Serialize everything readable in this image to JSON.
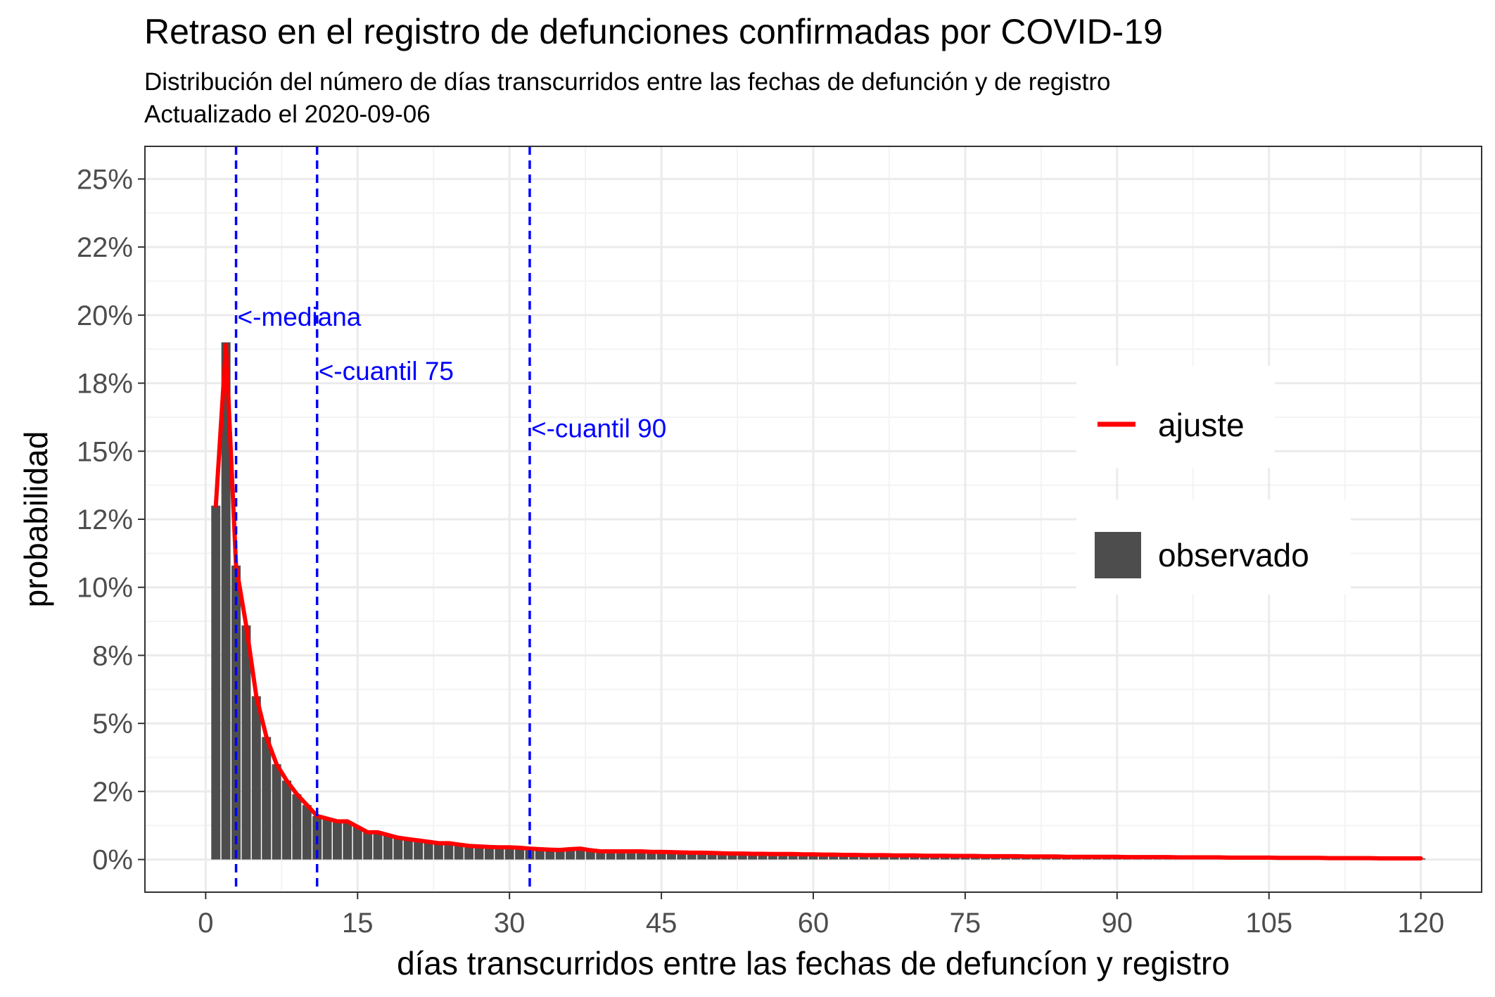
{
  "chart_data": {
    "type": "bar",
    "title": "Retraso en el registro de defunciones confirmadas por COVID-19",
    "subtitle_line1": "Distribución del número de días transcurridos entre las fechas de defunción y de registro",
    "subtitle_line2": "Actualizado el  2020-09-06",
    "xlabel": "días transcurridos entre las fechas de defuncíon y registro",
    "ylabel": "probabilidad",
    "xlim": [
      -6,
      126
    ],
    "ylim": [
      -0.012,
      0.262
    ],
    "x_ticks": [
      0,
      15,
      30,
      45,
      60,
      75,
      90,
      105,
      120
    ],
    "x_tick_labels": [
      "0",
      "15",
      "30",
      "45",
      "60",
      "75",
      "90",
      "105",
      "120"
    ],
    "y_ticks": [
      0,
      0.025,
      0.05,
      0.075,
      0.1,
      0.125,
      0.15,
      0.175,
      0.2,
      0.225,
      0.25
    ],
    "y_tick_labels": [
      "0%",
      "2%",
      "5%",
      "8%",
      "10%",
      "12%",
      "15%",
      "18%",
      "20%",
      "22%",
      "25%"
    ],
    "grid": true,
    "legend_position": "right",
    "colors": {
      "observado": "#4d4d4d",
      "ajuste": "#ff0000",
      "quantile_lines": "#0000ff",
      "grid_major": "#ebebeb",
      "grid_minor": "#f3f3f3",
      "panel_border": "#333333"
    },
    "legend": [
      {
        "key": "ajuste",
        "label": "ajuste",
        "kind": "line"
      },
      {
        "key": "observado",
        "label": "observado",
        "kind": "bar"
      }
    ],
    "vlines": [
      {
        "x": 3,
        "label": "<-mediana",
        "label_y": 0.1995
      },
      {
        "x": 11,
        "label": "<-cuantil 75",
        "label_y": 0.1795
      },
      {
        "x": 32,
        "label": "<-cuantil 90",
        "label_y": 0.1585
      }
    ],
    "series": [
      {
        "name": "observado",
        "type": "bar",
        "x": [
          1,
          2,
          3,
          4,
          5,
          6,
          7,
          8,
          9,
          10,
          11,
          12,
          13,
          14,
          15,
          16,
          17,
          18,
          19,
          20,
          21,
          22,
          23,
          24,
          25,
          26,
          27,
          28,
          29,
          30,
          31,
          32,
          33,
          34,
          35,
          36,
          37,
          38,
          39,
          40,
          41,
          42,
          43,
          44,
          45,
          46,
          47,
          48,
          49,
          50,
          51,
          52,
          53,
          54,
          55,
          56,
          57,
          58,
          59,
          60,
          61,
          62,
          63,
          64,
          65,
          66,
          67,
          68,
          69,
          70,
          71,
          72,
          73,
          74,
          75,
          76,
          77,
          78,
          79,
          80,
          81,
          82,
          83,
          84,
          85,
          86,
          87,
          88,
          89,
          90,
          91,
          92,
          93,
          94,
          95,
          96,
          97,
          98,
          99,
          100,
          101,
          102,
          103,
          104,
          105,
          106,
          107,
          108,
          109,
          110,
          111,
          112,
          113,
          114,
          115,
          116,
          117,
          118,
          119,
          120
        ],
        "values": [
          0.13,
          0.19,
          0.108,
          0.086,
          0.06,
          0.045,
          0.035,
          0.029,
          0.024,
          0.02,
          0.016,
          0.015,
          0.014,
          0.014,
          0.012,
          0.01,
          0.01,
          0.009,
          0.008,
          0.0075,
          0.007,
          0.0065,
          0.006,
          0.006,
          0.0055,
          0.005,
          0.0048,
          0.0046,
          0.0045,
          0.0045,
          0.0043,
          0.004,
          0.0038,
          0.0036,
          0.0035,
          0.0038,
          0.004,
          0.0034,
          0.003,
          0.003,
          0.003,
          0.003,
          0.003,
          0.0028,
          0.0028,
          0.0027,
          0.0026,
          0.0025,
          0.0025,
          0.0024,
          0.0023,
          0.0022,
          0.0022,
          0.0021,
          0.0021,
          0.002,
          0.002,
          0.002,
          0.0019,
          0.0019,
          0.0018,
          0.0018,
          0.0017,
          0.0017,
          0.0016,
          0.0016,
          0.0016,
          0.0015,
          0.0015,
          0.0015,
          0.0014,
          0.0014,
          0.0014,
          0.0013,
          0.0013,
          0.0013,
          0.0012,
          0.0012,
          0.0012,
          0.0012,
          0.0011,
          0.0011,
          0.0011,
          0.0011,
          0.001,
          0.001,
          0.001,
          0.001,
          0.001,
          0.001,
          0.0009,
          0.0009,
          0.0009,
          0.0009,
          0.0009,
          0.0008,
          0.0008,
          0.0008,
          0.0008,
          0.0008,
          0.0007,
          0.0007,
          0.0007,
          0.0007,
          0.0007,
          0.0006,
          0.0006,
          0.0006,
          0.0006,
          0.0006,
          0.0005,
          0.0005,
          0.0005,
          0.0005,
          0.0005,
          0.0004,
          0.0004,
          0.0004,
          0.0004,
          0.0004
        ]
      },
      {
        "name": "ajuste",
        "type": "line",
        "x": [
          1,
          2,
          3,
          4,
          5,
          6,
          7,
          8,
          9,
          10,
          11,
          12,
          13,
          14,
          15,
          16,
          17,
          18,
          19,
          20,
          21,
          22,
          23,
          24,
          25,
          26,
          27,
          28,
          29,
          30,
          31,
          32,
          33,
          34,
          35,
          36,
          37,
          38,
          39,
          40,
          41,
          42,
          43,
          44,
          45,
          46,
          47,
          48,
          49,
          50,
          51,
          52,
          53,
          54,
          55,
          56,
          57,
          58,
          59,
          60,
          61,
          62,
          63,
          64,
          65,
          66,
          67,
          68,
          69,
          70,
          71,
          72,
          73,
          74,
          75,
          76,
          77,
          78,
          79,
          80,
          81,
          82,
          83,
          84,
          85,
          86,
          87,
          88,
          89,
          90,
          91,
          92,
          93,
          94,
          95,
          96,
          97,
          98,
          99,
          100,
          101,
          102,
          103,
          104,
          105,
          106,
          107,
          108,
          109,
          110,
          111,
          112,
          113,
          114,
          115,
          116,
          117,
          118,
          119,
          120
        ],
        "values": [
          0.13,
          0.189,
          0.108,
          0.086,
          0.06,
          0.045,
          0.035,
          0.029,
          0.024,
          0.02,
          0.016,
          0.015,
          0.014,
          0.014,
          0.012,
          0.01,
          0.01,
          0.009,
          0.008,
          0.0075,
          0.007,
          0.0065,
          0.006,
          0.006,
          0.0055,
          0.005,
          0.0048,
          0.0046,
          0.0045,
          0.0045,
          0.0043,
          0.004,
          0.0038,
          0.0036,
          0.0035,
          0.0038,
          0.004,
          0.0034,
          0.003,
          0.003,
          0.003,
          0.003,
          0.003,
          0.0028,
          0.0028,
          0.0027,
          0.0026,
          0.0025,
          0.0025,
          0.0024,
          0.0023,
          0.0022,
          0.0022,
          0.0021,
          0.0021,
          0.002,
          0.002,
          0.002,
          0.0019,
          0.0019,
          0.0018,
          0.0018,
          0.0017,
          0.0017,
          0.0016,
          0.0016,
          0.0016,
          0.0015,
          0.0015,
          0.0015,
          0.0014,
          0.0014,
          0.0014,
          0.0013,
          0.0013,
          0.0013,
          0.0012,
          0.0012,
          0.0012,
          0.0012,
          0.0011,
          0.0011,
          0.0011,
          0.0011,
          0.001,
          0.001,
          0.001,
          0.001,
          0.001,
          0.001,
          0.0009,
          0.0009,
          0.0009,
          0.0009,
          0.0009,
          0.0008,
          0.0008,
          0.0008,
          0.0008,
          0.0008,
          0.0007,
          0.0007,
          0.0007,
          0.0007,
          0.0007,
          0.0006,
          0.0006,
          0.0006,
          0.0006,
          0.0006,
          0.0005,
          0.0005,
          0.0005,
          0.0005,
          0.0005,
          0.0004,
          0.0004,
          0.0004,
          0.0004,
          0.0004
        ]
      }
    ]
  }
}
